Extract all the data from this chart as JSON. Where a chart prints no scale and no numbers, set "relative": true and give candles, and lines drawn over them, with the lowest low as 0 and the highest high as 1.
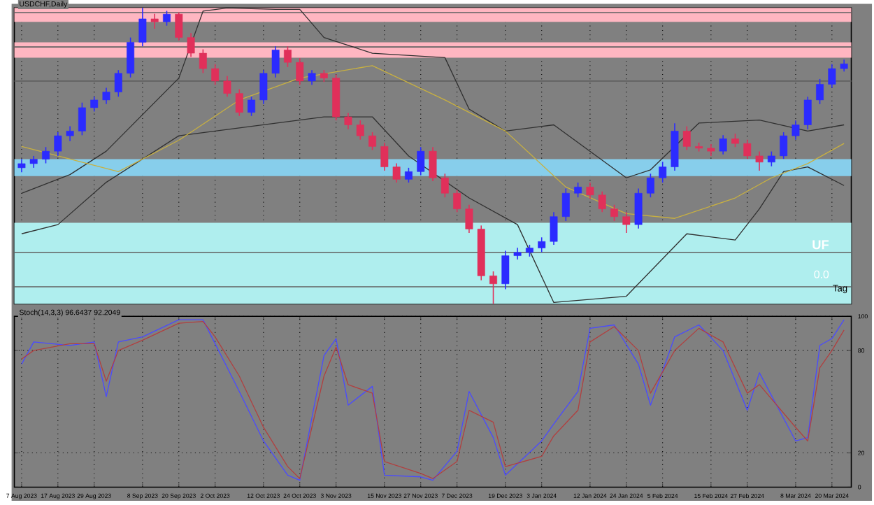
{
  "chart_data": [
    {
      "type": "candlestick",
      "title": "USDCHF,Daily",
      "relative": true,
      "tick_labels": false,
      "grid": "x",
      "categories": [
        null,
        null,
        null,
        null,
        null,
        null,
        null,
        null,
        null,
        null,
        null,
        null,
        null,
        null,
        null,
        null,
        null,
        null,
        null,
        null,
        null,
        null,
        null,
        null,
        null,
        null,
        null,
        null,
        null,
        null,
        null,
        null,
        null,
        null,
        null,
        null,
        null,
        null,
        null,
        null,
        null,
        null,
        null,
        null,
        null,
        null,
        null,
        null,
        null,
        null,
        null,
        null,
        null,
        null,
        null,
        null,
        null,
        null,
        null,
        null,
        null,
        null,
        null,
        null,
        null,
        null,
        null,
        null,
        null
      ],
      "ohlc": [
        [
          0.46,
          0.49,
          0.445,
          0.474
        ],
        [
          0.474,
          0.5,
          0.46,
          0.489
        ],
        [
          0.489,
          0.53,
          0.475,
          0.516
        ],
        [
          0.516,
          0.58,
          0.5,
          0.568
        ],
        [
          0.568,
          0.6,
          0.55,
          0.584
        ],
        [
          0.584,
          0.68,
          0.57,
          0.663
        ],
        [
          0.663,
          0.7,
          0.65,
          0.689
        ],
        [
          0.689,
          0.73,
          0.675,
          0.716
        ],
        [
          0.716,
          0.79,
          0.7,
          0.779
        ],
        [
          0.779,
          0.9,
          0.765,
          0.884
        ],
        [
          0.884,
          1.0,
          0.87,
          0.963
        ],
        [
          0.963,
          0.98,
          0.93,
          0.953
        ],
        [
          0.953,
          0.99,
          0.94,
          0.979
        ],
        [
          0.979,
          0.985,
          0.89,
          0.9
        ],
        [
          0.9,
          0.915,
          0.835,
          0.847
        ],
        [
          0.847,
          0.86,
          0.78,
          0.795
        ],
        [
          0.795,
          0.81,
          0.74,
          0.753
        ],
        [
          0.753,
          0.77,
          0.7,
          0.711
        ],
        [
          0.711,
          0.725,
          0.635,
          0.647
        ],
        [
          0.647,
          0.7,
          0.635,
          0.689
        ],
        [
          0.689,
          0.79,
          0.675,
          0.779
        ],
        [
          0.779,
          0.87,
          0.765,
          0.858
        ],
        [
          0.858,
          0.87,
          0.8,
          0.816
        ],
        [
          0.816,
          0.83,
          0.74,
          0.753
        ],
        [
          0.753,
          0.79,
          0.74,
          0.779
        ],
        [
          0.779,
          0.79,
          0.75,
          0.763
        ],
        [
          0.763,
          0.775,
          0.62,
          0.632
        ],
        [
          0.632,
          0.645,
          0.59,
          0.605
        ],
        [
          0.605,
          0.62,
          0.555,
          0.568
        ],
        [
          0.568,
          0.58,
          0.52,
          0.532
        ],
        [
          0.532,
          0.545,
          0.45,
          0.463
        ],
        [
          0.463,
          0.475,
          0.41,
          0.421
        ],
        [
          0.421,
          0.46,
          0.41,
          0.447
        ],
        [
          0.447,
          0.53,
          0.435,
          0.516
        ],
        [
          0.516,
          0.53,
          0.415,
          0.426
        ],
        [
          0.426,
          0.44,
          0.36,
          0.374
        ],
        [
          0.374,
          0.385,
          0.31,
          0.321
        ],
        [
          0.321,
          0.335,
          0.24,
          0.253
        ],
        [
          0.253,
          0.265,
          0.08,
          0.095
        ],
        [
          0.095,
          0.11,
          0.0,
          0.068
        ],
        [
          0.068,
          0.18,
          0.05,
          0.163
        ],
        [
          0.163,
          0.19,
          0.15,
          0.174
        ],
        [
          0.174,
          0.2,
          0.16,
          0.189
        ],
        [
          0.189,
          0.225,
          0.175,
          0.211
        ],
        [
          0.211,
          0.31,
          0.2,
          0.295
        ],
        [
          0.295,
          0.39,
          0.28,
          0.374
        ],
        [
          0.374,
          0.41,
          0.36,
          0.395
        ],
        [
          0.395,
          0.41,
          0.355,
          0.368
        ],
        [
          0.368,
          0.38,
          0.31,
          0.321
        ],
        [
          0.321,
          0.335,
          0.28,
          0.295
        ],
        [
          0.295,
          0.31,
          0.24,
          0.268
        ],
        [
          0.268,
          0.39,
          0.255,
          0.374
        ],
        [
          0.374,
          0.44,
          0.36,
          0.426
        ],
        [
          0.426,
          0.48,
          0.41,
          0.463
        ],
        [
          0.463,
          0.61,
          0.45,
          0.584
        ],
        [
          0.584,
          0.6,
          0.52,
          0.532
        ],
        [
          0.532,
          0.545,
          0.515,
          0.526
        ],
        [
          0.526,
          0.54,
          0.5,
          0.516
        ],
        [
          0.516,
          0.57,
          0.505,
          0.558
        ],
        [
          0.558,
          0.575,
          0.53,
          0.542
        ],
        [
          0.542,
          0.555,
          0.49,
          0.5
        ],
        [
          0.5,
          0.515,
          0.45,
          0.479
        ],
        [
          0.479,
          0.515,
          0.465,
          0.5
        ],
        [
          0.5,
          0.58,
          0.49,
          0.568
        ],
        [
          0.568,
          0.62,
          0.555,
          0.605
        ],
        [
          0.605,
          0.7,
          0.59,
          0.689
        ],
        [
          0.689,
          0.76,
          0.675,
          0.742
        ],
        [
          0.742,
          0.81,
          0.73,
          0.795
        ],
        [
          0.795,
          0.825,
          0.785,
          0.811
        ]
      ],
      "colors": [
        "#2b2bff",
        "#2b2bff",
        "#2b2bff",
        "#2b2bff",
        "#2b2bff",
        "#2b2bff",
        "#2b2bff",
        "#2b2bff",
        "#2b2bff",
        "#2b2bff",
        "#2b2bff",
        "#e0305a",
        "#2b2bff",
        "#e0305a",
        "#e0305a",
        "#e0305a",
        "#e0305a",
        "#e0305a",
        "#e0305a",
        "#2b2bff",
        "#2b2bff",
        "#2b2bff",
        "#e0305a",
        "#e0305a",
        "#2b2bff",
        "#e0305a",
        "#e0305a",
        "#e0305a",
        "#e0305a",
        "#e0305a",
        "#e0305a",
        "#e0305a",
        "#2b2bff",
        "#2b2bff",
        "#e0305a",
        "#e0305a",
        "#e0305a",
        "#e0305a",
        "#e0305a",
        "#e0305a",
        "#2b2bff",
        "#2b2bff",
        "#2b2bff",
        "#2b2bff",
        "#2b2bff",
        "#2b2bff",
        "#2b2bff",
        "#e0305a",
        "#e0305a",
        "#e0305a",
        "#e0305a",
        "#2b2bff",
        "#2b2bff",
        "#2b2bff",
        "#2b2bff",
        "#e0305a",
        "#e0305a",
        "#e0305a",
        "#2b2bff",
        "#e0305a",
        "#e0305a",
        "#e0305a",
        "#2b2bff",
        "#2b2bff",
        "#2b2bff",
        "#2b2bff",
        "#2b2bff",
        "#2b2bff",
        "#2b2bff"
      ],
      "series": [
        {
          "type": "line",
          "color": "#303030",
          "values": [
            0.374,
            null,
            null,
            null,
            0.437,
            null,
            null,
            0.516,
            null,
            null,
            null,
            null,
            null,
            0.763,
            null,
            0.989,
            null,
            1.0,
            null,
            null,
            null,
            0.995,
            null,
            0.995,
            null,
            0.9,
            null,
            null,
            null,
            0.847,
            null,
            null,
            null,
            null,
            null,
            0.832,
            null,
            0.658,
            null,
            null,
            0.584,
            null,
            null,
            null,
            0.605,
            null,
            null,
            null,
            null,
            null,
            0.426,
            null,
            0.453,
            null,
            null,
            null,
            0.611,
            null,
            null,
            null,
            null,
            0.621,
            null,
            null,
            null,
            0.584,
            null,
            null,
            0.605
          ]
        },
        {
          "type": "line",
          "color": "#303030",
          "values": [
            0.237,
            null,
            null,
            0.268,
            null,
            null,
            null,
            0.411,
            null,
            null,
            null,
            null,
            null,
            0.568,
            null,
            null,
            null,
            null,
            null,
            null,
            null,
            null,
            null,
            null,
            null,
            0.632,
            null,
            null,
            null,
            0.632,
            null,
            null,
            0.5,
            null,
            null,
            null,
            null,
            0.358,
            null,
            null,
            null,
            0.268,
            null,
            null,
            0.005,
            null,
            null,
            null,
            null,
            null,
            0.026,
            null,
            null,
            null,
            null,
            0.237,
            null,
            null,
            null,
            0.216,
            null,
            0.321,
            null,
            0.447,
            null,
            0.463,
            null,
            null,
            0.4
          ]
        },
        {
          "type": "line",
          "color": "#c8b040",
          "values": [
            0.532,
            null,
            null,
            null,
            null,
            null,
            null,
            null,
            0.447,
            null,
            null,
            null,
            null,
            0.553,
            null,
            null,
            null,
            null,
            0.689,
            null,
            null,
            null,
            null,
            0.763,
            null,
            null,
            null,
            null,
            null,
            0.805,
            null,
            null,
            null,
            null,
            null,
            0.689,
            null,
            null,
            null,
            null,
            0.584,
            null,
            null,
            null,
            null,
            0.395,
            null,
            null,
            null,
            null,
            0.305,
            null,
            null,
            null,
            0.289,
            null,
            null,
            null,
            null,
            0.358,
            null,
            null,
            0.426,
            null,
            null,
            0.474,
            null,
            null,
            0.542
          ]
        }
      ],
      "bands": [
        {
          "axis": "y",
          "from": 0.953,
          "to": 1.0,
          "color": "#ffb6c1"
        },
        {
          "axis": "y",
          "from": 0.832,
          "to": 0.884,
          "color": "#ffb6c1"
        },
        {
          "axis": "y",
          "from": 0.432,
          "to": 0.489,
          "color": "#87ceeb"
        },
        {
          "axis": "y",
          "from": 0.0,
          "to": 0.274,
          "color": "#afeeee"
        }
      ],
      "ref_lines": [
        {
          "axis": "y",
          "value": 0.984,
          "color": "#606060"
        },
        {
          "axis": "y",
          "value": 0.868,
          "color": "#606060"
        },
        {
          "axis": "y",
          "value": 0.753,
          "color": "#606060"
        },
        {
          "axis": "y",
          "value": 0.174,
          "color": "#606060"
        },
        {
          "axis": "y",
          "value": 0.058,
          "color": "#606060"
        }
      ],
      "annotations": [
        "UF",
        "0.0",
        "Tag"
      ]
    },
    {
      "type": "line",
      "title": "Stoch(14,3,3) 96.6437 92.2049",
      "grid": true,
      "ylim": [
        0,
        100
      ],
      "yticks": [
        0,
        20,
        80,
        100
      ],
      "categories": [
        "7 Aug 2023",
        null,
        null,
        "17 Aug 2023",
        null,
        null,
        "29 Aug 2023",
        null,
        null,
        null,
        "8 Sep 2023",
        null,
        null,
        "20 Sep 2023",
        null,
        null,
        "2 Oct 2023",
        null,
        null,
        null,
        "12 Oct 2023",
        null,
        null,
        "24 Oct 2023",
        null,
        null,
        "3 Nov 2023",
        null,
        null,
        null,
        "15 Nov 2023",
        null,
        null,
        "27 Nov 2023",
        null,
        null,
        "7 Dec 2023",
        null,
        null,
        null,
        "19 Dec 2023",
        null,
        null,
        "3 Jan 2024",
        null,
        null,
        null,
        "12 Jan 2024",
        null,
        null,
        "24 Jan 2024",
        null,
        null,
        "5 Feb 2024",
        null,
        null,
        null,
        "15 Feb 2024",
        null,
        null,
        "27 Feb 2024",
        null,
        null,
        null,
        "8 Mar 2024",
        null,
        null,
        "20 Mar 2024",
        null
      ],
      "series": [
        {
          "color": "#4a4aff",
          "values": [
            72,
            85,
            null,
            null,
            83,
            null,
            85,
            53,
            85,
            null,
            88,
            null,
            null,
            98,
            null,
            98,
            84,
            null,
            56,
            null,
            27,
            null,
            7,
            4,
            null,
            77,
            87,
            48,
            null,
            59,
            7,
            null,
            null,
            6,
            4,
            null,
            21,
            56,
            null,
            29,
            7,
            null,
            null,
            27,
            37,
            null,
            56,
            93,
            null,
            95,
            null,
            72,
            48,
            null,
            88,
            null,
            95,
            null,
            80,
            null,
            45,
            67,
            null,
            null,
            27,
            29,
            83,
            87,
            98
          ]
        },
        {
          "color": "#b04040",
          "values": [
            75,
            80,
            null,
            null,
            84,
            null,
            84,
            62,
            80,
            null,
            86,
            null,
            null,
            96,
            null,
            97,
            88,
            null,
            65,
            null,
            35,
            null,
            12,
            5,
            null,
            65,
            82,
            60,
            null,
            55,
            15,
            null,
            null,
            8,
            5,
            null,
            15,
            45,
            null,
            38,
            12,
            null,
            null,
            18,
            30,
            null,
            45,
            85,
            null,
            94,
            null,
            80,
            55,
            null,
            80,
            null,
            93,
            null,
            85,
            null,
            55,
            60,
            null,
            null,
            35,
            27,
            70,
            80,
            92
          ]
        }
      ]
    }
  ]
}
